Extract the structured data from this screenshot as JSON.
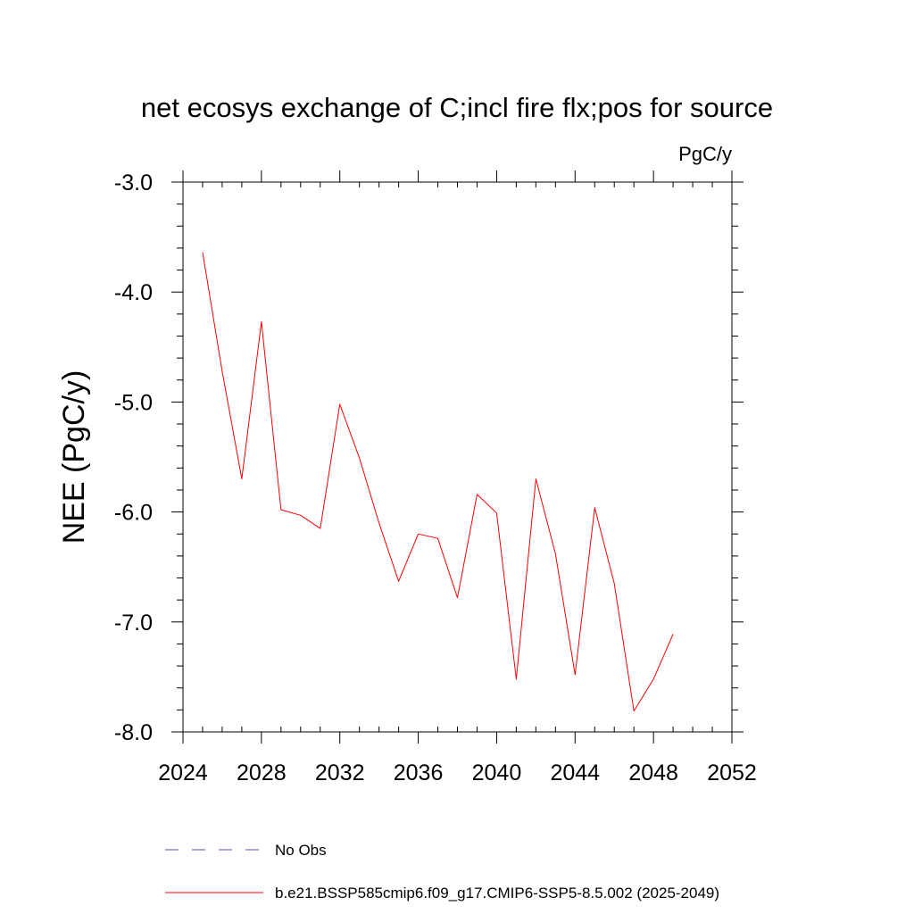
{
  "chart_data": {
    "type": "line",
    "title": "net ecosys exchange of C;incl fire flx;pos for source",
    "units_label": "PgC/y",
    "xlabel": "",
    "ylabel": "NEE  (PgC/y)",
    "xlim": [
      2024,
      2052
    ],
    "ylim": [
      -8.0,
      -3.0
    ],
    "x_ticks": [
      2024,
      2028,
      2032,
      2036,
      2040,
      2044,
      2048,
      2052
    ],
    "x_tick_labels": [
      "2024",
      "2028",
      "2032",
      "2036",
      "2040",
      "2044",
      "2048",
      "2052"
    ],
    "y_ticks": [
      -3.0,
      -4.0,
      -5.0,
      -6.0,
      -7.0,
      -8.0
    ],
    "y_tick_labels": [
      "-3.0",
      "-4.0",
      "-5.0",
      "-6.0",
      "-7.0",
      "-8.0"
    ],
    "grid": false,
    "legend_position": "bottom",
    "series": [
      {
        "name": "b.e21.BSSP585cmip6.f09_g17.CMIP6-SSP5-8.5.002 (2025-2049)",
        "color": "#ff0000",
        "dash": "solid",
        "x": [
          2025,
          2026,
          2027,
          2028,
          2029,
          2030,
          2031,
          2032,
          2033,
          2034,
          2035,
          2036,
          2037,
          2038,
          2039,
          2040,
          2041,
          2042,
          2043,
          2044,
          2045,
          2046,
          2047,
          2048,
          2049
        ],
        "values": [
          -3.64,
          -4.72,
          -5.7,
          -4.27,
          -5.98,
          -6.03,
          -6.15,
          -5.02,
          -5.51,
          -6.1,
          -6.63,
          -6.2,
          -6.24,
          -6.78,
          -5.84,
          -6.01,
          -7.52,
          -5.7,
          -6.38,
          -7.48,
          -5.96,
          -6.65,
          -7.81,
          -7.52,
          -7.11
        ]
      }
    ],
    "legend": [
      {
        "label": "No Obs",
        "color": "#5050b0",
        "dash": "dashed"
      },
      {
        "label": "b.e21.BSSP585cmip6.f09_g17.CMIP6-SSP5-8.5.002 (2025-2049)",
        "color": "#ff0000",
        "dash": "solid"
      }
    ]
  }
}
